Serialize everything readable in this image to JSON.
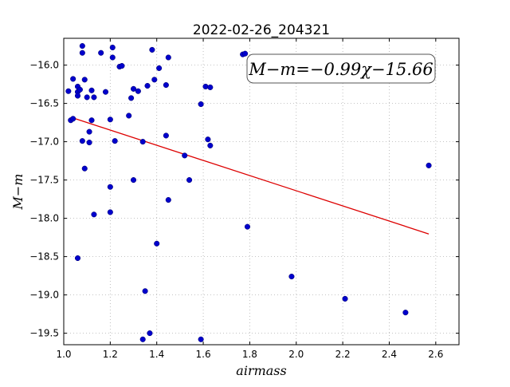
{
  "chart_data": {
    "type": "scatter",
    "title": "2022-02-26_204321",
    "xlabel": "airmass",
    "ylabel": "M−m",
    "xlim": [
      1.0,
      2.7
    ],
    "ylim": [
      -19.65,
      -15.65
    ],
    "x_ticks": [
      1.0,
      1.2,
      1.4,
      1.6,
      1.8,
      2.0,
      2.2,
      2.4,
      2.6
    ],
    "x_tick_labels": [
      "1.0",
      "1.2",
      "1.4",
      "1.6",
      "1.8",
      "2.0",
      "2.2",
      "2.4",
      "2.6"
    ],
    "y_ticks": [
      -16.0,
      -16.5,
      -17.0,
      -17.5,
      -18.0,
      -18.5,
      -19.0,
      -19.5
    ],
    "y_tick_labels": [
      "−16.0",
      "−16.5",
      "−17.0",
      "−17.5",
      "−18.0",
      "−18.5",
      "−19.0",
      "−19.5"
    ],
    "grid": true,
    "point_color": "#0000cc",
    "fit_color": "#dd0000",
    "annotation": "M−m=−0.99χ−15.66",
    "fit": {
      "slope": -0.99,
      "intercept": -15.66,
      "x_range": [
        1.03,
        2.57
      ]
    },
    "points": [
      {
        "x": 1.02,
        "y": -16.34
      },
      {
        "x": 1.03,
        "y": -16.72
      },
      {
        "x": 1.04,
        "y": -16.18
      },
      {
        "x": 1.04,
        "y": -16.7
      },
      {
        "x": 1.06,
        "y": -16.28
      },
      {
        "x": 1.06,
        "y": -16.35
      },
      {
        "x": 1.07,
        "y": -16.32
      },
      {
        "x": 1.06,
        "y": -16.4
      },
      {
        "x": 1.06,
        "y": -18.52
      },
      {
        "x": 1.08,
        "y": -15.75
      },
      {
        "x": 1.08,
        "y": -15.84
      },
      {
        "x": 1.08,
        "y": -16.99
      },
      {
        "x": 1.09,
        "y": -16.19
      },
      {
        "x": 1.09,
        "y": -17.35
      },
      {
        "x": 1.1,
        "y": -16.42
      },
      {
        "x": 1.11,
        "y": -16.87
      },
      {
        "x": 1.11,
        "y": -17.01
      },
      {
        "x": 1.12,
        "y": -16.33
      },
      {
        "x": 1.12,
        "y": -16.72
      },
      {
        "x": 1.13,
        "y": -16.42
      },
      {
        "x": 1.13,
        "y": -17.95
      },
      {
        "x": 1.16,
        "y": -15.84
      },
      {
        "x": 1.18,
        "y": -16.35
      },
      {
        "x": 1.2,
        "y": -16.71
      },
      {
        "x": 1.2,
        "y": -17.59
      },
      {
        "x": 1.2,
        "y": -17.92
      },
      {
        "x": 1.21,
        "y": -15.77
      },
      {
        "x": 1.21,
        "y": -15.9
      },
      {
        "x": 1.22,
        "y": -16.99
      },
      {
        "x": 1.24,
        "y": -16.02
      },
      {
        "x": 1.25,
        "y": -16.01
      },
      {
        "x": 1.28,
        "y": -16.66
      },
      {
        "x": 1.29,
        "y": -16.43
      },
      {
        "x": 1.3,
        "y": -16.31
      },
      {
        "x": 1.3,
        "y": -17.5
      },
      {
        "x": 1.32,
        "y": -16.34
      },
      {
        "x": 1.34,
        "y": -17.0
      },
      {
        "x": 1.34,
        "y": -19.58
      },
      {
        "x": 1.35,
        "y": -18.95
      },
      {
        "x": 1.36,
        "y": -16.27
      },
      {
        "x": 1.37,
        "y": -19.5
      },
      {
        "x": 1.38,
        "y": -15.8
      },
      {
        "x": 1.39,
        "y": -16.19
      },
      {
        "x": 1.4,
        "y": -18.33
      },
      {
        "x": 1.41,
        "y": -16.04
      },
      {
        "x": 1.44,
        "y": -16.26
      },
      {
        "x": 1.44,
        "y": -16.92
      },
      {
        "x": 1.45,
        "y": -15.9
      },
      {
        "x": 1.45,
        "y": -17.76
      },
      {
        "x": 1.52,
        "y": -17.18
      },
      {
        "x": 1.54,
        "y": -17.5
      },
      {
        "x": 1.59,
        "y": -16.51
      },
      {
        "x": 1.59,
        "y": -19.58
      },
      {
        "x": 1.61,
        "y": -16.28
      },
      {
        "x": 1.62,
        "y": -16.97
      },
      {
        "x": 1.63,
        "y": -17.05
      },
      {
        "x": 1.63,
        "y": -16.29
      },
      {
        "x": 1.77,
        "y": -15.86
      },
      {
        "x": 1.78,
        "y": -15.85
      },
      {
        "x": 1.79,
        "y": -18.11
      },
      {
        "x": 1.98,
        "y": -18.76
      },
      {
        "x": 2.21,
        "y": -19.05
      },
      {
        "x": 2.47,
        "y": -19.23
      },
      {
        "x": 2.57,
        "y": -17.31
      }
    ]
  }
}
